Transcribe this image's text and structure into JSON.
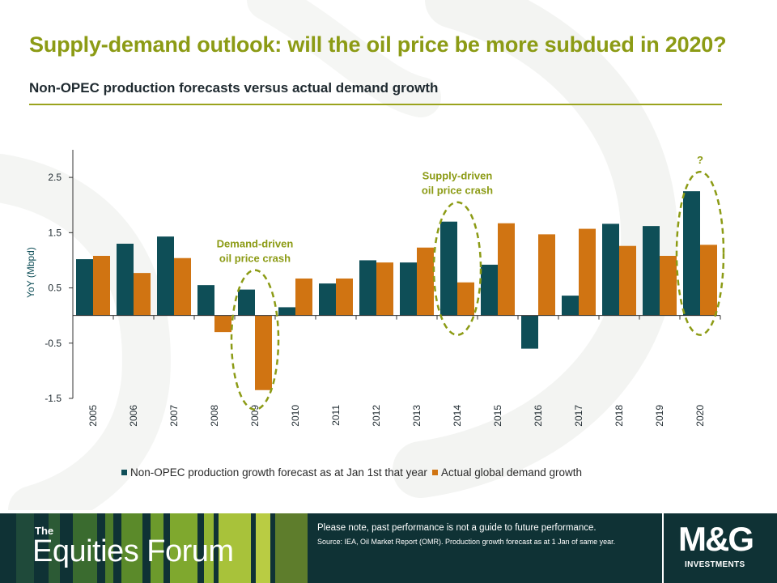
{
  "header": {
    "title": "Supply-demand outlook: will the oil price be more subdued in 2020?",
    "subtitle": "Non-OPEC production forecasts versus actual demand growth"
  },
  "colors": {
    "accent": "#8c9b15",
    "forecast": "#0e4e57",
    "demand": "#d07412",
    "footer_bg": "#0f3235",
    "annotation": "#8c9b15"
  },
  "chart_data": {
    "type": "bar",
    "ylabel": "YoY (Mbpd)",
    "xlabel": "",
    "ylim": [
      -1.5,
      3.0
    ],
    "yticks": [
      2.5,
      1.5,
      0.5,
      -0.5,
      -1.5
    ],
    "categories": [
      "2005",
      "2006",
      "2007",
      "2008",
      "2009",
      "2010",
      "2011",
      "2012",
      "2013",
      "2014",
      "2015",
      "2016",
      "2017",
      "2018",
      "2019",
      "2020"
    ],
    "series": [
      {
        "name": "Non-OPEC production growth forecast as at Jan 1st that year",
        "values": [
          1.02,
          1.3,
          1.43,
          0.55,
          0.47,
          0.15,
          0.58,
          1.0,
          0.96,
          1.7,
          0.92,
          -0.6,
          0.36,
          1.66,
          1.62,
          2.25
        ]
      },
      {
        "name": "Actual global demand growth",
        "values": [
          1.08,
          0.77,
          1.04,
          -0.3,
          -1.35,
          0.67,
          0.67,
          0.96,
          1.23,
          0.6,
          1.67,
          1.47,
          1.57,
          1.26,
          1.08,
          1.28
        ]
      }
    ],
    "annotations": [
      {
        "text": [
          "Demand-driven",
          "oil price crash"
        ],
        "category": "2009"
      },
      {
        "text": [
          "Supply-driven",
          "oil price crash"
        ],
        "category": "2014"
      },
      {
        "text": [
          "?"
        ],
        "category": "2020"
      }
    ],
    "legend_position": "bottom"
  },
  "footer": {
    "brand_small": "The",
    "brand_large": "Equities Forum",
    "disclaimer": "Please note, past performance  is not a guide to future performance.",
    "source": "Source: IEA, Oil Market Report (OMR). Production growth forecast as at 1 Jan of same year.",
    "logo_text": "M&G",
    "logo_sub": "INVESTMENTS"
  }
}
